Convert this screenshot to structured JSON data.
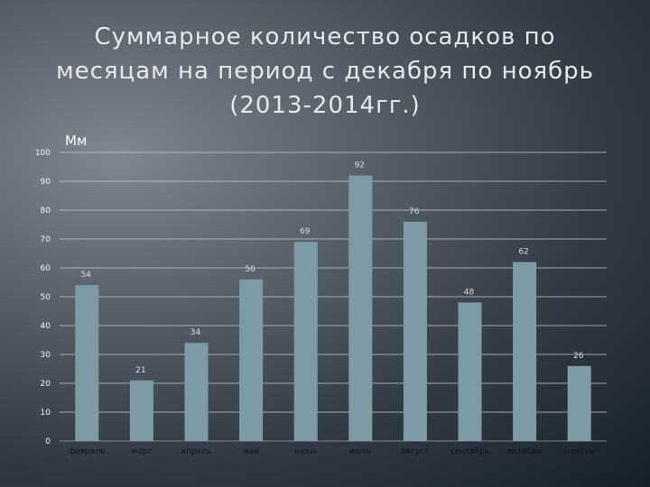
{
  "title_lines": [
    "Суммарное количество осадков по",
    "месяцам на период с декабря по ноябрь",
    "(2013-2014гг.)"
  ],
  "chart_data": {
    "type": "bar",
    "title": "Суммарное количество осадков по месяцам на период с декабря по ноябрь (2013-2014гг.)",
    "ylabel": "Мм",
    "xlabel": "",
    "categories": [
      "февраль",
      "март",
      "апрель",
      "май",
      "июнь",
      "июль",
      "август",
      "сентябрь",
      "октябрь",
      "ноябрь"
    ],
    "values": [
      54,
      21,
      34,
      56,
      69,
      92,
      76,
      48,
      62,
      26
    ],
    "ylim": [
      0,
      100
    ],
    "yticks": [
      0,
      10,
      20,
      30,
      40,
      50,
      60,
      70,
      80,
      90,
      100
    ],
    "grid": true,
    "bar_color": "#7d9ba5"
  }
}
